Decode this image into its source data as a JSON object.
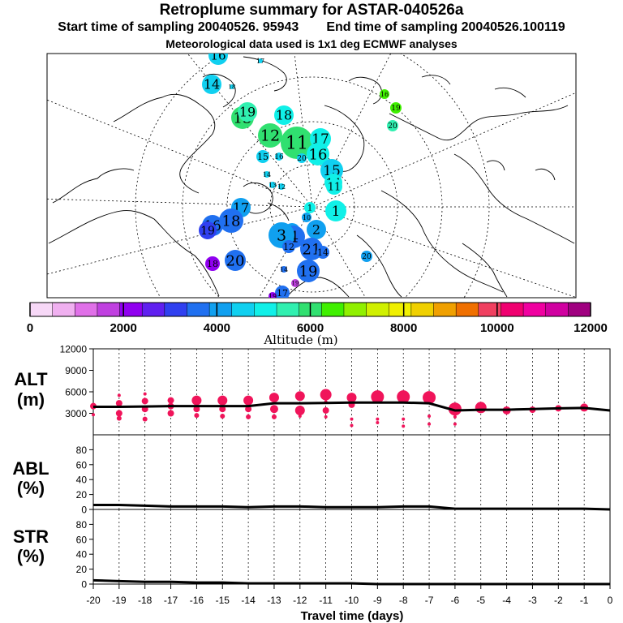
{
  "title": "Retroplume summary for ASTAR-040526a",
  "start_label": "Start time of sampling 20040526. 95943",
  "end_label": "End time of sampling 20040526.100119",
  "met_label": "Meteorological data used is 1x1 deg ECMWF analyses",
  "colorbar": {
    "ticks": [
      "0",
      "2000",
      "4000",
      "6000",
      "8000",
      "10000",
      "12000"
    ],
    "label": "Altitude (m)",
    "colors": [
      "#f7d8f7",
      "#f0b0f0",
      "#e070e8",
      "#c040e0",
      "#9000f0",
      "#6020f0",
      "#3040f0",
      "#2070f0",
      "#10a0f0",
      "#10d0f0",
      "#10f0e8",
      "#30f0b0",
      "#30e070",
      "#40f000",
      "#90f000",
      "#d0f000",
      "#f0f000",
      "#f0d000",
      "#f0a000",
      "#f07000",
      "#f04060",
      "#f00070",
      "#f000a0",
      "#d000a0",
      "#a00080"
    ]
  },
  "map": {
    "labels": [
      {
        "t": "16",
        "c": "#10d0f0",
        "r": 12,
        "s": 15
      },
      {
        "t": "17",
        "c": "#10d0f0",
        "r": 3,
        "s": 8
      },
      {
        "t": "14",
        "c": "#10d0f0",
        "r": 12,
        "s": 16
      },
      {
        "t": "18",
        "c": "#10d0f0",
        "r": 3,
        "s": 7
      },
      {
        "t": "16",
        "c": "#40f000",
        "r": 6,
        "s": 8
      },
      {
        "t": "19",
        "c": "#40f000",
        "r": 7,
        "s": 9
      },
      {
        "t": "20",
        "c": "#30f0b0",
        "r": 7,
        "s": 9
      },
      {
        "t": "13",
        "c": "#30e070",
        "r": 14,
        "s": 18
      },
      {
        "t": "19",
        "c": "#30f0b0",
        "r": 12,
        "s": 16
      },
      {
        "t": "18",
        "c": "#10f0e8",
        "r": 12,
        "s": 16
      },
      {
        "t": "12",
        "c": "#30e070",
        "r": 15,
        "s": 19
      },
      {
        "t": "11",
        "c": "#30e070",
        "r": 20,
        "s": 22
      },
      {
        "t": "17",
        "c": "#10f0e8",
        "r": 13,
        "s": 17
      },
      {
        "t": "16",
        "c": "#10f0e8",
        "r": 14,
        "s": 18
      },
      {
        "t": "15",
        "c": "#10d0f0",
        "r": 8,
        "s": 11
      },
      {
        "t": "16",
        "c": "#10d0f0",
        "r": 5,
        "s": 9
      },
      {
        "t": "20",
        "c": "#10d0f0",
        "r": 6,
        "s": 9
      },
      {
        "t": "15",
        "c": "#10d0f0",
        "r": 14,
        "s": 17
      },
      {
        "t": "14",
        "c": "#10f0e8",
        "r": 11,
        "s": 15
      },
      {
        "t": "11",
        "c": "#10f0e8",
        "r": 10,
        "s": 13
      },
      {
        "t": "14",
        "c": "#10d0f0",
        "r": 4,
        "s": 8
      },
      {
        "t": "12",
        "c": "#10d0f0",
        "r": 4,
        "s": 8
      },
      {
        "t": "13",
        "c": "#10d0f0",
        "r": 4,
        "s": 8
      },
      {
        "t": "17",
        "c": "#10a0f0",
        "r": 12,
        "s": 16
      },
      {
        "t": "16",
        "c": "#2070f0",
        "r": 13,
        "s": 17
      },
      {
        "t": "18",
        "c": "#2070f0",
        "r": 15,
        "s": 18
      },
      {
        "t": "5",
        "c": "#10a0f0",
        "r": 10,
        "s": 13
      },
      {
        "t": "19",
        "c": "#3040f0",
        "r": 11,
        "s": 14
      },
      {
        "t": "4",
        "c": "#2070f0",
        "r": 14,
        "s": 19
      },
      {
        "t": "3",
        "c": "#10a0f0",
        "r": 16,
        "s": 19
      },
      {
        "t": "2",
        "c": "#10a0f0",
        "r": 12,
        "s": 16
      },
      {
        "t": "1",
        "c": "#10f0e8",
        "r": 13,
        "s": 17
      },
      {
        "t": "10",
        "c": "#10a0f0",
        "r": 6,
        "s": 8
      },
      {
        "t": "1",
        "c": "#10f0e8",
        "r": 7,
        "s": 10
      },
      {
        "t": "12",
        "c": "#2070f0",
        "r": 8,
        "s": 11
      },
      {
        "t": "3",
        "c": "#2070f0",
        "r": 5,
        "s": 8
      },
      {
        "t": "21",
        "c": "#2070f0",
        "r": 14,
        "s": 18
      },
      {
        "t": "14",
        "c": "#2070f0",
        "r": 8,
        "s": 11
      },
      {
        "t": "14",
        "c": "#2070f0",
        "r": 4,
        "s": 8
      },
      {
        "t": "20",
        "c": "#2070f0",
        "r": 13,
        "s": 18
      },
      {
        "t": "20",
        "c": "#10a0f0",
        "r": 7,
        "s": 9
      },
      {
        "t": "19",
        "c": "#2070f0",
        "r": 14,
        "s": 18
      },
      {
        "t": "18",
        "c": "#9000f0",
        "r": 9,
        "s": 11
      },
      {
        "t": "19",
        "c": "#c040e0",
        "r": 5,
        "s": 7
      },
      {
        "t": "17",
        "c": "#2070f0",
        "r": 9,
        "s": 11
      },
      {
        "t": "19",
        "c": "#9000f0",
        "r": 5,
        "s": 8
      }
    ]
  },
  "alt_panel": {
    "ylabel_1": "ALT",
    "ylabel_2": "(m)",
    "ymax": 12000,
    "yticks": [
      "12000",
      "9000",
      "6000",
      "3000"
    ],
    "line_days": [
      -20,
      -19,
      -18,
      -17,
      -16,
      -15,
      -14,
      -13,
      -12,
      -11,
      -10,
      -9,
      -8,
      -7,
      -6,
      -5,
      -4,
      -3,
      -2,
      -1,
      0
    ],
    "line_values": [
      3900,
      3900,
      3950,
      4000,
      4000,
      4000,
      4000,
      4400,
      4400,
      4450,
      4500,
      4500,
      4500,
      4400,
      3400,
      3500,
      3500,
      3600,
      3700,
      3750,
      3400
    ],
    "markers": [
      {
        "d": -20,
        "v": 4000,
        "r": 4
      },
      {
        "d": -20,
        "v": 2800,
        "r": 2
      },
      {
        "d": -19,
        "v": 5500,
        "r": 2
      },
      {
        "d": -19,
        "v": 4400,
        "r": 4
      },
      {
        "d": -19,
        "v": 3000,
        "r": 4
      },
      {
        "d": -19,
        "v": 2300,
        "r": 3
      },
      {
        "d": -18,
        "v": 5700,
        "r": 2
      },
      {
        "d": -18,
        "v": 4700,
        "r": 4
      },
      {
        "d": -18,
        "v": 3600,
        "r": 4
      },
      {
        "d": -18,
        "v": 2200,
        "r": 3
      },
      {
        "d": -17,
        "v": 4800,
        "r": 4
      },
      {
        "d": -17,
        "v": 4000,
        "r": 4
      },
      {
        "d": -17,
        "v": 3000,
        "r": 4
      },
      {
        "d": -16,
        "v": 4800,
        "r": 6
      },
      {
        "d": -16,
        "v": 3600,
        "r": 4
      },
      {
        "d": -16,
        "v": 2700,
        "r": 3
      },
      {
        "d": -15,
        "v": 4800,
        "r": 6
      },
      {
        "d": -15,
        "v": 3600,
        "r": 4
      },
      {
        "d": -15,
        "v": 2600,
        "r": 3
      },
      {
        "d": -14,
        "v": 4800,
        "r": 6
      },
      {
        "d": -14,
        "v": 3600,
        "r": 4
      },
      {
        "d": -14,
        "v": 2500,
        "r": 3
      },
      {
        "d": -13,
        "v": 5200,
        "r": 6
      },
      {
        "d": -13,
        "v": 3600,
        "r": 5
      },
      {
        "d": -13,
        "v": 2500,
        "r": 3
      },
      {
        "d": -12,
        "v": 5400,
        "r": 6
      },
      {
        "d": -12,
        "v": 3400,
        "r": 6
      },
      {
        "d": -12,
        "v": 2600,
        "r": 2
      },
      {
        "d": -11,
        "v": 5600,
        "r": 7
      },
      {
        "d": -11,
        "v": 4600,
        "r": 2
      },
      {
        "d": -11,
        "v": 3400,
        "r": 4
      },
      {
        "d": -11,
        "v": 2500,
        "r": 2
      },
      {
        "d": -10,
        "v": 5200,
        "r": 6
      },
      {
        "d": -10,
        "v": 4200,
        "r": 4
      },
      {
        "d": -10,
        "v": 2200,
        "r": 2
      },
      {
        "d": -10,
        "v": 1300,
        "r": 2
      },
      {
        "d": -9,
        "v": 5300,
        "r": 8
      },
      {
        "d": -9,
        "v": 2200,
        "r": 2
      },
      {
        "d": -9,
        "v": 1700,
        "r": 2
      },
      {
        "d": -8,
        "v": 5300,
        "r": 8
      },
      {
        "d": -8,
        "v": 2200,
        "r": 2
      },
      {
        "d": -8,
        "v": 1200,
        "r": 2
      },
      {
        "d": -7,
        "v": 5200,
        "r": 8
      },
      {
        "d": -7,
        "v": 2600,
        "r": 2
      },
      {
        "d": -7,
        "v": 1500,
        "r": 2
      },
      {
        "d": -6,
        "v": 3600,
        "r": 8
      },
      {
        "d": -6,
        "v": 2500,
        "r": 2
      },
      {
        "d": -6,
        "v": 1500,
        "r": 2
      },
      {
        "d": -5,
        "v": 3800,
        "r": 7
      },
      {
        "d": -4,
        "v": 3400,
        "r": 5
      },
      {
        "d": -3,
        "v": 3500,
        "r": 4
      },
      {
        "d": -2,
        "v": 3700,
        "r": 4
      },
      {
        "d": -1,
        "v": 3800,
        "r": 5
      }
    ]
  },
  "abl_panel": {
    "ylabel_1": "ABL",
    "ylabel_2": "(%)",
    "yticks": [
      "80",
      "60",
      "40",
      "20",
      "0"
    ],
    "ymax": 100,
    "line_days": [
      -20,
      -19,
      -18,
      -17,
      -16,
      -15,
      -14,
      -13,
      -12,
      -11,
      -10,
      -9,
      -8,
      -7,
      -6,
      -5,
      -4,
      -3,
      -2,
      -1,
      0
    ],
    "line_values": [
      6,
      6,
      5,
      4,
      4,
      4,
      3,
      4,
      4,
      3,
      3,
      3,
      4,
      4,
      1,
      1,
      1,
      1,
      1,
      1,
      0
    ]
  },
  "str_panel": {
    "ylabel_1": "STR",
    "ylabel_2": "(%)",
    "yticks": [
      "80",
      "60",
      "40",
      "20",
      "0"
    ],
    "ymax": 100,
    "line_days": [
      -20,
      -19,
      -18,
      -17,
      -16,
      -15,
      -14,
      -13,
      -12,
      -11,
      -10,
      -9,
      -8,
      -7,
      -6,
      -5,
      -4,
      -3,
      -2,
      -1,
      0
    ],
    "line_values": [
      5,
      4,
      3,
      3,
      2,
      2,
      1,
      1,
      1,
      1,
      1,
      0,
      0,
      0,
      0,
      0,
      0,
      0,
      0,
      0,
      0
    ]
  },
  "x_axis": {
    "label": "Travel time (days)",
    "ticks": [
      "-20",
      "-19",
      "-18",
      "-17",
      "-16",
      "-15",
      "-14",
      "-13",
      "-12",
      "-11",
      "-10",
      "-9",
      "-8",
      "-7",
      "-6",
      "-5",
      "-4",
      "-3",
      "-2",
      "-1",
      "0"
    ]
  },
  "chart_data": [
    {
      "type": "line",
      "title": "Retroplume summary for ASTAR-040526a",
      "xlabel": "Travel time (days)",
      "ylabel": "ALT (m)",
      "ylim": [
        0,
        12000
      ],
      "x": [
        -20,
        -19,
        -18,
        -17,
        -16,
        -15,
        -14,
        -13,
        -12,
        -11,
        -10,
        -9,
        -8,
        -7,
        -6,
        -5,
        -4,
        -3,
        -2,
        -1,
        0
      ],
      "series": [
        {
          "name": "Altitude",
          "values": [
            3900,
            3900,
            3950,
            4000,
            4000,
            4000,
            4000,
            4400,
            4400,
            4450,
            4500,
            4500,
            4500,
            4400,
            3400,
            3500,
            3500,
            3600,
            3700,
            3750,
            3400
          ]
        }
      ]
    },
    {
      "type": "line",
      "xlabel": "Travel time (days)",
      "ylabel": "ABL (%)",
      "ylim": [
        0,
        100
      ],
      "x": [
        -20,
        -19,
        -18,
        -17,
        -16,
        -15,
        -14,
        -13,
        -12,
        -11,
        -10,
        -9,
        -8,
        -7,
        -6,
        -5,
        -4,
        -3,
        -2,
        -1,
        0
      ],
      "series": [
        {
          "name": "ABL",
          "values": [
            6,
            6,
            5,
            4,
            4,
            4,
            3,
            4,
            4,
            3,
            3,
            3,
            4,
            4,
            1,
            1,
            1,
            1,
            1,
            1,
            0
          ]
        }
      ]
    },
    {
      "type": "line",
      "xlabel": "Travel time (days)",
      "ylabel": "STR (%)",
      "ylim": [
        0,
        100
      ],
      "x": [
        -20,
        -19,
        -18,
        -17,
        -16,
        -15,
        -14,
        -13,
        -12,
        -11,
        -10,
        -9,
        -8,
        -7,
        -6,
        -5,
        -4,
        -3,
        -2,
        -1,
        0
      ],
      "series": [
        {
          "name": "STR",
          "values": [
            5,
            4,
            3,
            3,
            2,
            2,
            1,
            1,
            1,
            1,
            1,
            0,
            0,
            0,
            0,
            0,
            0,
            0,
            0,
            0,
            0
          ]
        }
      ]
    }
  ]
}
